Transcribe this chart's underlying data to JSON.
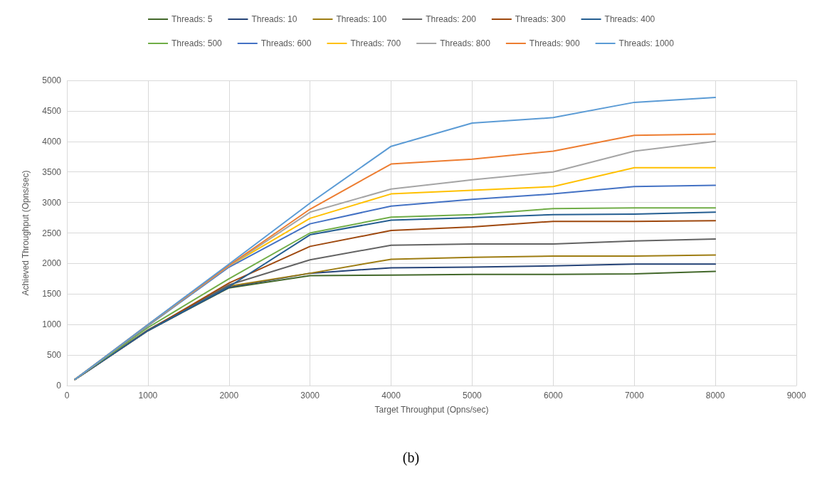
{
  "chart_data": {
    "type": "line",
    "xlabel": "Target Throughput (Opns/sec)",
    "ylabel": "Achieved Throughput (Opns/sec)",
    "x": [
      100,
      1000,
      2000,
      3000,
      4000,
      5000,
      6000,
      7000,
      8000
    ],
    "xlim": [
      0,
      9000
    ],
    "xticks": [
      0,
      1000,
      2000,
      3000,
      4000,
      5000,
      6000,
      7000,
      8000,
      9000
    ],
    "ylim": [
      0,
      5000
    ],
    "yticks": [
      0,
      500,
      1000,
      1500,
      2000,
      2500,
      3000,
      3500,
      4000,
      4500,
      5000
    ],
    "grid": true,
    "legend": "top",
    "marker": "none",
    "line_style": "solid",
    "annotations": [
      "(b)"
    ],
    "series": [
      {
        "name": "Threads: 5",
        "color": "#43682b",
        "values": [
          100,
          900,
          1600,
          1800,
          1810,
          1820,
          1820,
          1830,
          1870
        ]
      },
      {
        "name": "Threads: 10",
        "color": "#264478",
        "values": [
          100,
          900,
          1610,
          1840,
          1930,
          1940,
          1960,
          1990,
          1990
        ]
      },
      {
        "name": "Threads: 100",
        "color": "#9e7d13",
        "values": [
          100,
          910,
          1630,
          1840,
          2070,
          2100,
          2120,
          2120,
          2140
        ]
      },
      {
        "name": "Threads: 200",
        "color": "#636363",
        "values": [
          100,
          910,
          1650,
          2060,
          2300,
          2320,
          2320,
          2370,
          2400
        ]
      },
      {
        "name": "Threads: 300",
        "color": "#9e480e",
        "values": [
          100,
          900,
          1680,
          2280,
          2540,
          2600,
          2690,
          2690,
          2700
        ]
      },
      {
        "name": "Threads: 400",
        "color": "#255e91",
        "values": [
          100,
          900,
          1620,
          2470,
          2710,
          2750,
          2800,
          2810,
          2840
        ]
      },
      {
        "name": "Threads: 500",
        "color": "#70ad47",
        "values": [
          100,
          950,
          1750,
          2500,
          2760,
          2800,
          2900,
          2910,
          2910
        ]
      },
      {
        "name": "Threads: 600",
        "color": "#4472c4",
        "values": [
          100,
          980,
          1940,
          2650,
          2940,
          3050,
          3140,
          3260,
          3280
        ]
      },
      {
        "name": "Threads: 700",
        "color": "#ffc000",
        "values": [
          100,
          990,
          1960,
          2740,
          3140,
          3200,
          3260,
          3570,
          3570
        ]
      },
      {
        "name": "Threads: 800",
        "color": "#a5a5a5",
        "values": [
          100,
          990,
          1960,
          2840,
          3220,
          3370,
          3500,
          3840,
          4000
        ]
      },
      {
        "name": "Threads: 900",
        "color": "#ed7d31",
        "values": [
          100,
          1000,
          1970,
          2890,
          3630,
          3710,
          3840,
          4100,
          4120
        ]
      },
      {
        "name": "Threads: 1000",
        "color": "#5b9bd5",
        "values": [
          100,
          1000,
          1990,
          2990,
          3920,
          4300,
          4390,
          4640,
          4720
        ]
      }
    ]
  }
}
